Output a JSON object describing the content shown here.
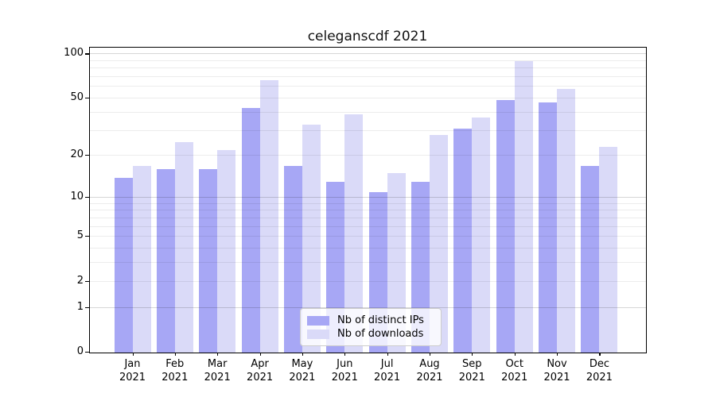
{
  "chart_data": {
    "type": "bar",
    "title": "celeganscdf 2021",
    "yscale": "log1p",
    "ylim": [
      0,
      111
    ],
    "yticks": [
      100,
      50,
      20,
      10,
      5,
      2,
      1,
      0
    ],
    "minor_gridlines": [
      2,
      3,
      4,
      5,
      6,
      7,
      8,
      9,
      20,
      30,
      40,
      50,
      60,
      70,
      80,
      90
    ],
    "major_gridlines": [
      1,
      10,
      100
    ],
    "grid": "horizontal",
    "legend_position": "bottom-center-inside",
    "categories": [
      "Jan 2021",
      "Feb 2021",
      "Mar 2021",
      "Apr 2021",
      "May 2021",
      "Jun 2021",
      "Jul 2021",
      "Aug 2021",
      "Sep 2021",
      "Oct 2021",
      "Nov 2021",
      "Dec 2021"
    ],
    "series": [
      {
        "name": "Nb of distinct IPs",
        "color": "#a7a7f5",
        "values": [
          14,
          16,
          16,
          43,
          17,
          13,
          11,
          13,
          31,
          49,
          47,
          17
        ]
      },
      {
        "name": "Nb of downloads",
        "color": "#dadaf8",
        "values": [
          17,
          25,
          22,
          67,
          33,
          39,
          15,
          28,
          37,
          90,
          58,
          23
        ]
      }
    ]
  }
}
